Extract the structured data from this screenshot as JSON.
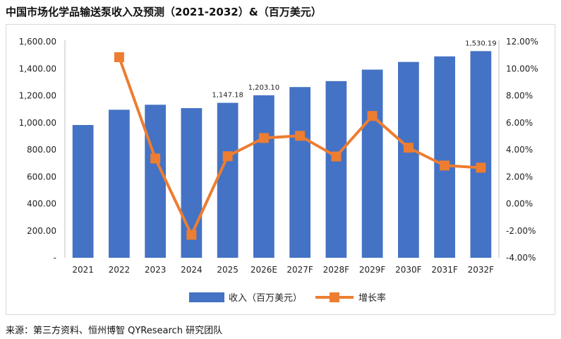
{
  "title": "中国市场化学品输送泵收入及预测（2021-2032）&（百万美元）",
  "source": "来源：第三方资料、恒州博智 QYResearch 研究团队",
  "colors": {
    "bar": "#4472C4",
    "line": "#ED7D31"
  },
  "chart_data": {
    "type": "bar+line",
    "categories": [
      "2021",
      "2022",
      "2023",
      "2024",
      "2025",
      "2026E",
      "2027F",
      "2028F",
      "2029F",
      "2030F",
      "2031F",
      "2032F"
    ],
    "series": [
      {
        "name": "收入（百万美元）",
        "type": "bar",
        "axis": "left",
        "values": [
          983,
          1096,
          1133,
          1108,
          1147.18,
          1203.1,
          1264,
          1308,
          1393,
          1450,
          1491,
          1530.19
        ]
      },
      {
        "name": "增长率",
        "type": "line",
        "axis": "right",
        "values": [
          null,
          10.85,
          3.35,
          -2.3,
          3.52,
          4.87,
          5.03,
          3.5,
          6.5,
          4.15,
          2.83,
          2.67
        ]
      }
    ],
    "data_labels": [
      {
        "index": 4,
        "text": "1,147.18"
      },
      {
        "index": 5,
        "text": "1,203.10"
      },
      {
        "index": 11,
        "text": "1,530.19"
      }
    ],
    "y_left": {
      "min": 0,
      "max": 1600,
      "step": 200,
      "tick_labels": [
        "-",
        "200.00",
        "400.00",
        "600.00",
        "800.00",
        "1,000.00",
        "1,200.00",
        "1,400.00",
        "1,600.00"
      ]
    },
    "y_right": {
      "min": -4,
      "max": 12,
      "step": 2,
      "tick_labels": [
        "-4.00%",
        "-2.00%",
        "0.00%",
        "2.00%",
        "4.00%",
        "6.00%",
        "8.00%",
        "10.00%",
        "12.00%"
      ]
    },
    "legend": {
      "position": "bottom",
      "items": [
        "收入（百万美元）",
        "增长率"
      ]
    }
  }
}
